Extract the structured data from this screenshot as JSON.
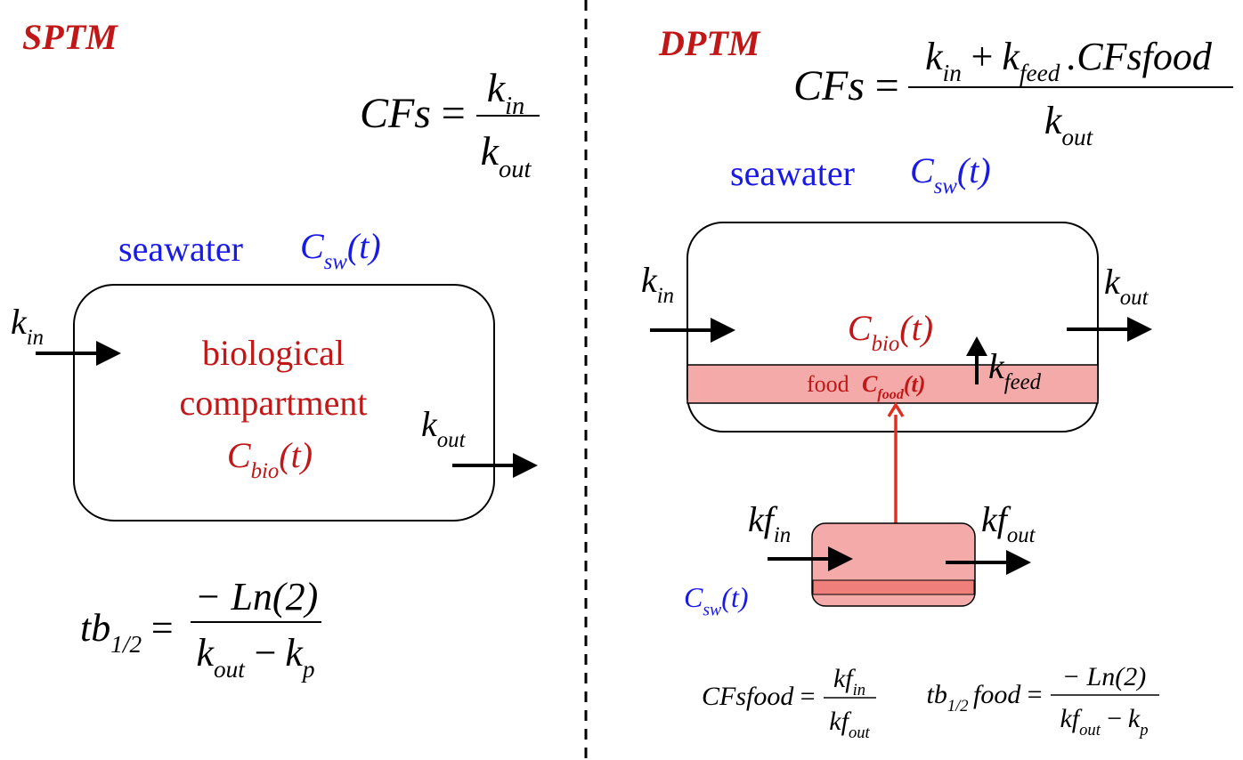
{
  "left": {
    "title": "SPTM",
    "cfs": {
      "lhs": "CFs",
      "eq": "=",
      "num": {
        "base": "k",
        "sub": "in"
      },
      "den": {
        "base": "k",
        "sub": "out"
      }
    },
    "seawater": {
      "label": "seawater",
      "conc": {
        "base": "C",
        "sub": "sw",
        "arg": "(t)"
      }
    },
    "k_in": {
      "base": "k",
      "sub": "in"
    },
    "k_out": {
      "base": "k",
      "sub": "out"
    },
    "compartment": {
      "lines": [
        "biological",
        "compartment"
      ],
      "conc": {
        "base": "C",
        "sub": "bio",
        "arg": "(t)"
      }
    },
    "half_life": {
      "lhs": {
        "base": "tb",
        "sub": "1/2"
      },
      "eq": "=",
      "num": "− Ln(2)",
      "den": [
        {
          "base": "k",
          "sub": "out"
        },
        "−",
        {
          "base": "k",
          "sub": "p"
        }
      ]
    }
  },
  "right": {
    "title": "DPTM",
    "cfs": {
      "lhs": "CFs",
      "eq": "=",
      "num": [
        {
          "base": "k",
          "sub": "in"
        },
        "+",
        {
          "base": "k",
          "sub": "feed"
        },
        ".CFsfood"
      ],
      "den": {
        "base": "k",
        "sub": "out"
      }
    },
    "seawater": {
      "label": "seawater",
      "conc": {
        "base": "C",
        "sub": "sw",
        "arg": "(t)"
      }
    },
    "k_in": {
      "base": "k",
      "sub": "in"
    },
    "k_out": {
      "base": "k",
      "sub": "out"
    },
    "c_bio": {
      "base": "C",
      "sub": "bio",
      "arg": "(t)"
    },
    "k_feed": {
      "base": "k",
      "sub": "feed"
    },
    "food": {
      "label": "food",
      "conc": {
        "base": "C",
        "sub": "food",
        "arg": "(t)"
      }
    },
    "kf_in": {
      "base": "kf",
      "sub": "in"
    },
    "kf_out": {
      "base": "kf",
      "sub": "out"
    },
    "food_seawater": {
      "base": "C",
      "sub": "sw",
      "arg": "(t)"
    },
    "cfsfood": {
      "lhs": "CFsfood",
      "eq": "=",
      "num": {
        "base": "kf",
        "sub": "in"
      },
      "den": {
        "base": "kf",
        "sub": "out"
      }
    },
    "half_life_food": {
      "lhs": [
        {
          "base": "tb",
          "sub": "1/2"
        },
        "food"
      ],
      "eq": "=",
      "num": "− Ln(2)",
      "den": [
        {
          "base": "kf",
          "sub": "out"
        },
        "−",
        {
          "base": "k",
          "sub": "p"
        }
      ]
    }
  }
}
